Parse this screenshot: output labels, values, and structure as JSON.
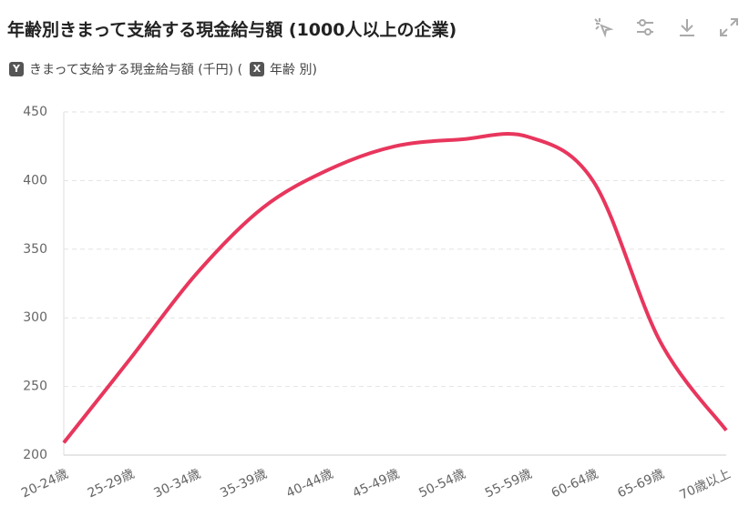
{
  "chart_data": {
    "type": "line",
    "title": "年齢別きまって支給する現金給与額 (1000人以上の企業)",
    "legend": [
      {
        "key": "Y",
        "label": "きまって支給する現金給与額 (千円) ("
      },
      {
        "key": "X",
        "label": "年齢 別)"
      }
    ],
    "categories": [
      "20-24歳",
      "25-29歳",
      "30-34歳",
      "35-39歳",
      "40-44歳",
      "45-49歳",
      "50-54歳",
      "55-59歳",
      "60-64歳",
      "65-69歳",
      "70歳以上"
    ],
    "series": [
      {
        "color": "#e8365d",
        "values": [
          209,
          270,
          332,
          380,
          408,
          425,
          430,
          432,
          399,
          283,
          218
        ]
      }
    ],
    "ylim": [
      200,
      450
    ],
    "yticks": [
      200,
      250,
      300,
      350,
      400,
      450
    ],
    "grid": true
  }
}
